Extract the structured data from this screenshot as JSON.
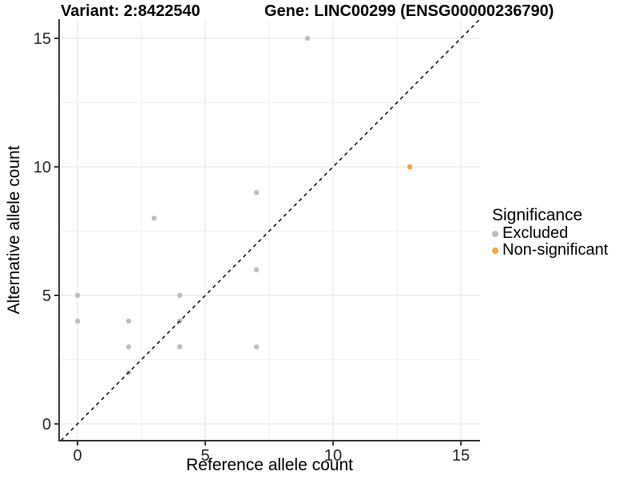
{
  "titles": {
    "variant": "Variant: 2:8422540",
    "gene": "Gene: LINC00299 (ENSG00000236790)"
  },
  "legend": {
    "title": "Significance",
    "items": [
      {
        "label": "Excluded",
        "color": "#BDBDBD"
      },
      {
        "label": "Non-significant",
        "color": "#F9A33C"
      }
    ]
  },
  "chart_data": {
    "type": "scatter",
    "title": "Variant: 2:8422540 — Gene: LINC00299 (ENSG00000236790)",
    "xlabel": "Reference allele count",
    "ylabel": "Alternative allele count",
    "xlim": [
      -0.72,
      15.75
    ],
    "ylim": [
      -0.65,
      15.75
    ],
    "x_major_ticks": [
      0,
      5,
      10,
      15
    ],
    "y_major_ticks": [
      0,
      5,
      10,
      15
    ],
    "x_minor_ticks": [
      2.5,
      7.5,
      12.5
    ],
    "y_minor_ticks": [
      2.5,
      7.5,
      12.5
    ],
    "grid": "major+minor",
    "grid_major_color": "#E3E3E3",
    "grid_minor_color": "#F0F0F0",
    "axis_color": "#383838",
    "legend_position": "right",
    "identity_line": {
      "style": "dashed",
      "from": -0.65,
      "to": 15.75,
      "color": "#0a0a0a"
    },
    "series": [
      {
        "name": "Excluded",
        "color": "#BDBDBD",
        "points": [
          [
            0,
            4
          ],
          [
            0,
            5
          ],
          [
            2,
            2
          ],
          [
            2,
            3
          ],
          [
            2,
            4
          ],
          [
            3,
            8
          ],
          [
            4,
            3
          ],
          [
            4,
            4
          ],
          [
            4,
            5
          ],
          [
            7,
            3
          ],
          [
            7,
            6
          ],
          [
            7,
            9
          ],
          [
            9,
            15
          ]
        ]
      },
      {
        "name": "Non-significant",
        "color": "#F9A33C",
        "points": [
          [
            13,
            10
          ]
        ]
      }
    ]
  }
}
